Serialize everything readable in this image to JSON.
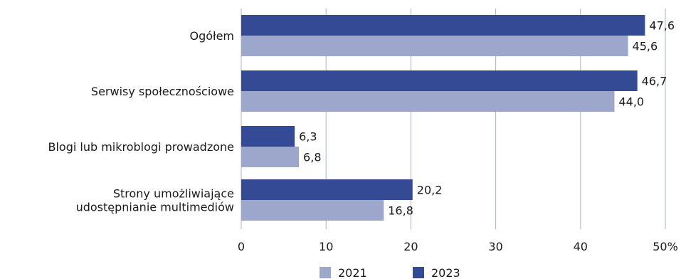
{
  "chart_data": {
    "type": "bar",
    "orientation": "horizontal",
    "categories": [
      [
        "Ogółem"
      ],
      [
        "Serwisy społecznościowe"
      ],
      [
        "Blogi lub mikroblogi prowadzone"
      ],
      [
        "Strony umożliwiające",
        "udostępnianie multimediów"
      ]
    ],
    "series": [
      {
        "name": "2023",
        "color": "#344a94",
        "values": [
          47.6,
          46.7,
          6.3,
          20.2
        ],
        "labels": [
          "47,6",
          "46,7",
          "6,3",
          "20,2"
        ]
      },
      {
        "name": "2021",
        "color": "#9da7cb",
        "values": [
          45.6,
          44.0,
          6.8,
          16.8
        ],
        "labels": [
          "45,6",
          "44,0",
          "6,8",
          "16,8"
        ]
      }
    ],
    "xlim": [
      0,
      50
    ],
    "xticks": [
      "0",
      "10",
      "20",
      "30",
      "40",
      "50%"
    ],
    "grid": true,
    "legend": [
      {
        "name": "2021",
        "color": "#9da7cb"
      },
      {
        "name": "2023",
        "color": "#344a94"
      }
    ],
    "legend_position": "bottom"
  }
}
